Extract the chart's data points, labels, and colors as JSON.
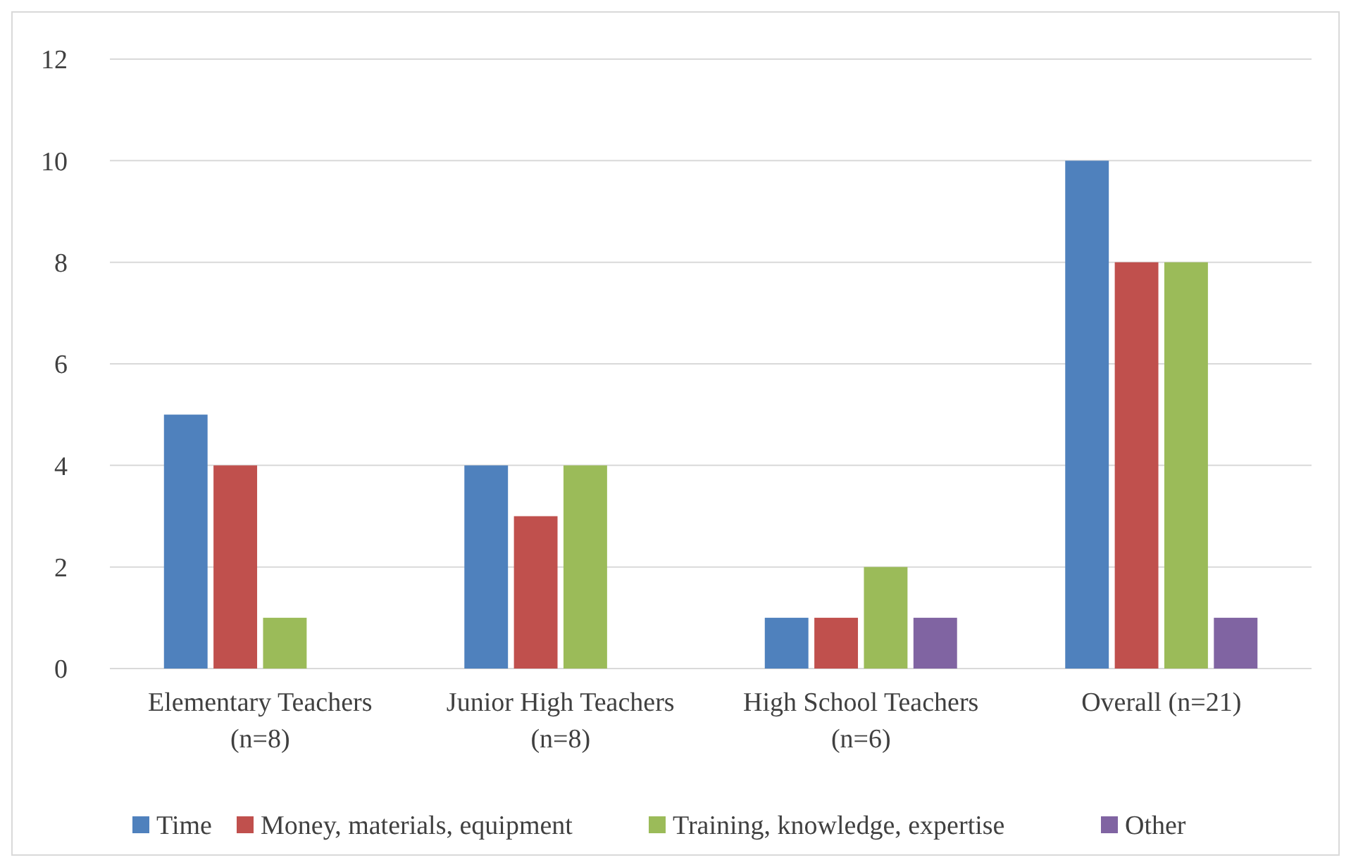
{
  "chart_data": {
    "type": "bar",
    "categories": [
      "Elementary Teachers (n=8)",
      "Junior High Teachers (n=8)",
      "High School Teachers (n=6)",
      "Overall (n=21)"
    ],
    "series": [
      {
        "name": "Time",
        "color": "#4f81bd",
        "values": [
          5,
          4,
          1,
          10
        ]
      },
      {
        "name": "Money, materials, equipment",
        "color": "#c0504d",
        "values": [
          4,
          3,
          1,
          8
        ]
      },
      {
        "name": "Training, knowledge, expertise",
        "color": "#9bbb59",
        "values": [
          1,
          4,
          2,
          8
        ]
      },
      {
        "name": "Other",
        "color": "#8064a2",
        "values": [
          0,
          0,
          1,
          1
        ]
      }
    ],
    "ylim": [
      0,
      12
    ],
    "yticks": [
      0,
      2,
      4,
      6,
      8,
      10,
      12
    ],
    "grid": "y",
    "legend": "bottom"
  }
}
